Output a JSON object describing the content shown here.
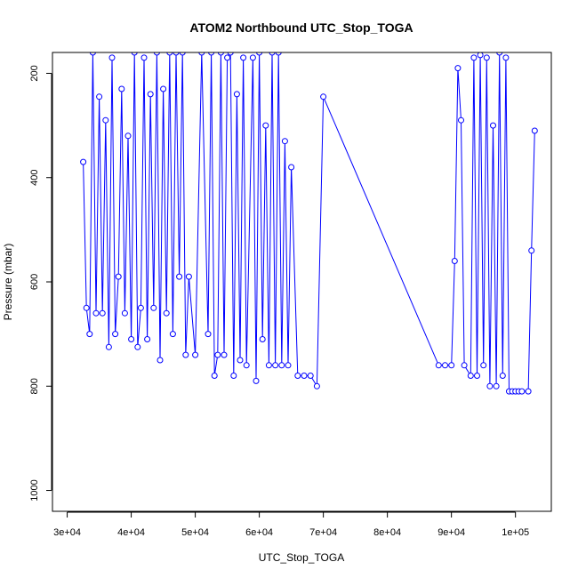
{
  "chart_data": {
    "type": "scatter",
    "title": "ATOM2 Northbound UTC_Stop_TOGA",
    "xlabel": "UTC_Stop_TOGA",
    "ylabel": "Pressure (mbar)",
    "xlim": [
      27700,
      105600
    ],
    "ylim": [
      1040,
      160
    ],
    "y_inverted": true,
    "x_ticks": [
      {
        "value": 30000,
        "label": "3e+04"
      },
      {
        "value": 40000,
        "label": "4e+04"
      },
      {
        "value": 50000,
        "label": "5e+04"
      },
      {
        "value": 60000,
        "label": "6e+04"
      },
      {
        "value": 70000,
        "label": "7e+04"
      },
      {
        "value": 80000,
        "label": "8e+04"
      },
      {
        "value": 90000,
        "label": "9e+04"
      },
      {
        "value": 100000,
        "label": "1e+05"
      }
    ],
    "y_ticks": [
      {
        "value": 200,
        "label": "200"
      },
      {
        "value": 400,
        "label": "400"
      },
      {
        "value": 600,
        "label": "600"
      },
      {
        "value": 800,
        "label": "800"
      },
      {
        "value": 1000,
        "label": "1000"
      }
    ],
    "grid": false,
    "series": [
      {
        "color": "#0000ff",
        "marker": "open-circle",
        "line": true,
        "x": [
          32500,
          33000,
          33500,
          34000,
          34500,
          35000,
          35500,
          36000,
          36500,
          37000,
          37500,
          38000,
          38500,
          39000,
          39500,
          40000,
          40500,
          41000,
          41500,
          42000,
          42500,
          43000,
          43500,
          44000,
          44500,
          45000,
          45500,
          46000,
          46500,
          47000,
          47500,
          48000,
          48500,
          49000,
          50000,
          51000,
          52000,
          52500,
          53000,
          53500,
          54000,
          54500,
          55000,
          55500,
          56000,
          56500,
          57000,
          57500,
          58000,
          59000,
          59500,
          60000,
          60500,
          61000,
          61500,
          62000,
          62500,
          63000,
          63500,
          64000,
          64500,
          65000,
          66000,
          67000,
          68000,
          69000,
          70000,
          88000,
          89000,
          90000,
          90500,
          91000,
          91500,
          92000,
          93000,
          93500,
          94000,
          94500,
          95000,
          95500,
          96000,
          96500,
          97000,
          97500,
          98000,
          98500,
          99000,
          99500,
          100000,
          100500,
          101000,
          102000,
          102500,
          103000
        ],
        "y": [
          370,
          650,
          700,
          160,
          660,
          245,
          660,
          290,
          725,
          170,
          700,
          590,
          230,
          660,
          320,
          710,
          160,
          725,
          650,
          170,
          710,
          240,
          650,
          160,
          750,
          230,
          660,
          160,
          700,
          160,
          590,
          160,
          740,
          590,
          740,
          160,
          700,
          160,
          780,
          740,
          160,
          740,
          170,
          160,
          780,
          240,
          750,
          170,
          760,
          170,
          790,
          160,
          710,
          300,
          760,
          160,
          760,
          160,
          760,
          330,
          760,
          380,
          780,
          780,
          780,
          800,
          245,
          760,
          760,
          760,
          560,
          190,
          290,
          760,
          780,
          170,
          780,
          165,
          760,
          170,
          800,
          300,
          800,
          160,
          780,
          170,
          810,
          810,
          810,
          810,
          810,
          810,
          540,
          310
        ]
      }
    ]
  }
}
